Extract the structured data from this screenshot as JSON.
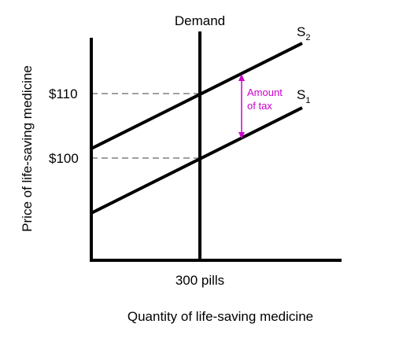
{
  "diagram": {
    "demand_label": "Demand",
    "supply_new_label": {
      "base": "S",
      "sub": "2"
    },
    "supply_old_label": {
      "base": "S",
      "sub": "1"
    },
    "price_high_label": "$110",
    "price_low_label": "$100",
    "quantity_label": "300 pills",
    "tax_label_line1": "Amount",
    "tax_label_line2": "of tax",
    "x_axis_title": "Quantity of life-saving medicine",
    "y_axis_title": "Price of life-saving medicine",
    "colors": {
      "lines": "#000000",
      "guides": "#808080",
      "tax_annotation": "#cc00cc"
    }
  }
}
